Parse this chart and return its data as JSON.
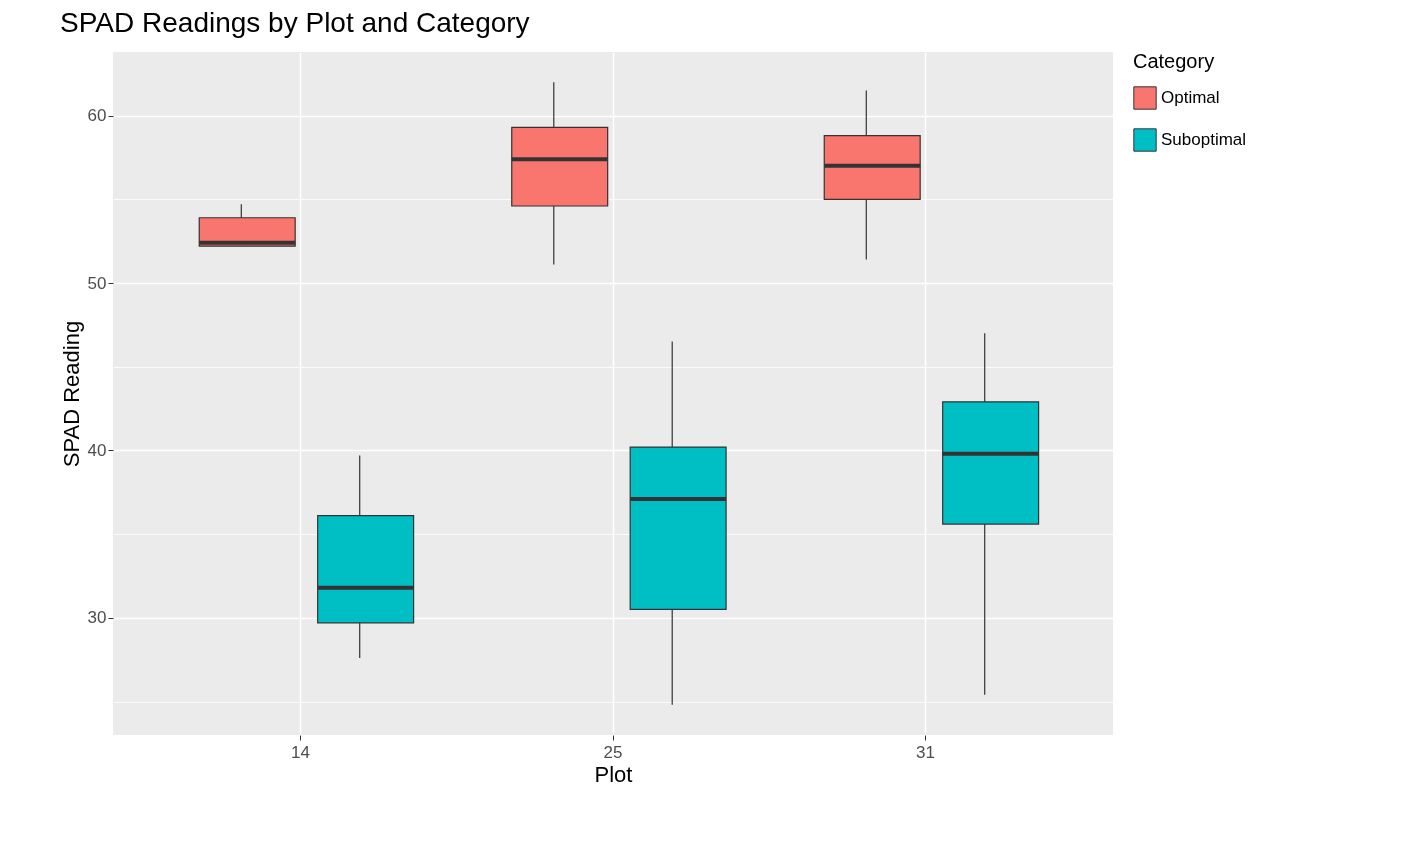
{
  "chart_data": {
    "type": "box",
    "title": "SPAD Readings by Plot and Category",
    "xlabel": "Plot",
    "ylabel": "SPAD Reading",
    "legend_title": "Category",
    "categories": [
      "14",
      "25",
      "31"
    ],
    "series": [
      {
        "name": "Optimal",
        "color": "#f8766d",
        "boxes": [
          {
            "low": 52.2,
            "q1": 52.2,
            "median": 52.4,
            "q3": 53.9,
            "high": 54.7
          },
          {
            "low": 51.1,
            "q1": 54.6,
            "median": 57.4,
            "q3": 59.3,
            "high": 62.0
          },
          {
            "low": 51.4,
            "q1": 55.0,
            "median": 57.0,
            "q3": 58.8,
            "high": 61.5
          }
        ]
      },
      {
        "name": "Suboptimal",
        "color": "#00bfc4",
        "boxes": [
          {
            "low": 27.6,
            "q1": 29.7,
            "median": 31.8,
            "q3": 36.1,
            "high": 39.7
          },
          {
            "low": 24.8,
            "q1": 30.5,
            "median": 37.1,
            "q3": 40.2,
            "high": 46.5
          },
          {
            "low": 25.4,
            "q1": 35.6,
            "median": 39.8,
            "q3": 42.9,
            "high": 47.0
          }
        ]
      }
    ],
    "ylim": [
      23.0,
      63.8
    ],
    "yticks": [
      {
        "value": 25,
        "label": null
      },
      30,
      {
        "value": 35,
        "label": null
      },
      40,
      {
        "value": 45,
        "label": null
      },
      50,
      {
        "value": 55,
        "label": null
      },
      60
    ],
    "grid": true,
    "legend": "right"
  }
}
